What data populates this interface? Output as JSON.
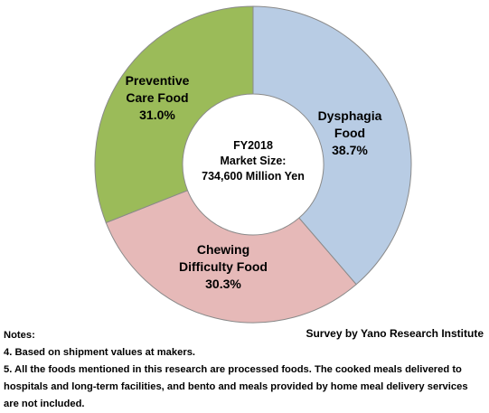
{
  "chart_data": {
    "type": "pie",
    "style": "donut",
    "slices": [
      {
        "name_lines": [
          "Dysphagia",
          "Food"
        ],
        "pct_label": "38.7%",
        "value": 38.7,
        "color": "#b8cce4"
      },
      {
        "name_lines": [
          "Chewing",
          "Difficulty Food"
        ],
        "pct_label": "30.3%",
        "value": 30.3,
        "color": "#e6b9b8"
      },
      {
        "name_lines": [
          "Preventive",
          "Care Food"
        ],
        "pct_label": "31.0%",
        "value": 31.0,
        "color": "#9bbb59"
      }
    ],
    "center_lines": [
      "FY2018",
      "Market Size:",
      "734,600 Million Yen"
    ]
  },
  "source": "Survey by Yano Research Institute",
  "notes": [
    "Notes:",
    "4. Based on shipment values at makers.",
    "5. All the foods mentioned in this research are processed foods. The cooked meals delivered to hospitals and long-term facilities, and bento and meals provided by home meal delivery services are not included."
  ]
}
